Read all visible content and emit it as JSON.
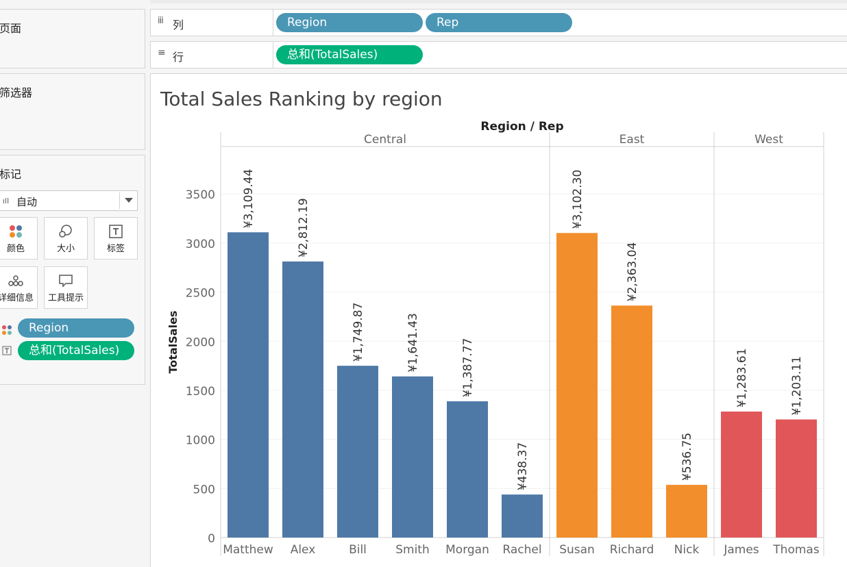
{
  "shelves": {
    "columns": {
      "label": "列",
      "pills": [
        "Region",
        "Rep"
      ]
    },
    "rows": {
      "label": "行",
      "pills": [
        "总和(TotalSales)"
      ]
    }
  },
  "panels": {
    "pages": {
      "title": "页面"
    },
    "filters": {
      "title": "筛选器"
    },
    "marks": {
      "title": "标记",
      "mark_type": "自动",
      "buttons": [
        {
          "label": "颜色",
          "icon": "color-dots-icon"
        },
        {
          "label": "大小",
          "icon": "size-circles-icon"
        },
        {
          "label": "标签",
          "icon": "label-t-icon"
        },
        {
          "label": "详细信息",
          "icon": "detail-dots-icon"
        },
        {
          "label": "工具提示",
          "icon": "tooltip-bubble-icon"
        }
      ],
      "fields": [
        {
          "label": "Region",
          "type": "color",
          "pill_color": "#4a96b5"
        },
        {
          "label": "总和(TotalSales)",
          "type": "label",
          "pill_color": "#00b17a"
        }
      ]
    }
  },
  "chart_data": {
    "type": "bar",
    "title": "Total Sales Ranking by region",
    "header_title": "Region / Rep",
    "ylabel": "TotalSales",
    "ylim": [
      0,
      4000
    ],
    "yticks": [
      0,
      500,
      1000,
      1500,
      2000,
      2500,
      3000,
      3500
    ],
    "groups": [
      {
        "name": "Central",
        "color": "#4e79a7",
        "reps": [
          "Matthew",
          "Alex",
          "Bill",
          "Smith",
          "Morgan",
          "Rachel"
        ],
        "values": [
          3109.44,
          2812.19,
          1749.87,
          1641.43,
          1387.77,
          438.37
        ],
        "labels": [
          "¥3,109.44",
          "¥2,812.19",
          "¥1,749.87",
          "¥1,641.43",
          "¥1,387.77",
          "¥438.37"
        ]
      },
      {
        "name": "East",
        "color": "#f28e2b",
        "reps": [
          "Susan",
          "Richard",
          "Nick"
        ],
        "values": [
          3102.3,
          2363.04,
          536.75
        ],
        "labels": [
          "¥3,102.30",
          "¥2,363.04",
          "¥536.75"
        ]
      },
      {
        "name": "West",
        "color": "#e15759",
        "reps": [
          "James",
          "Thomas"
        ],
        "values": [
          1283.61,
          1203.11
        ],
        "labels": [
          "¥1,283.61",
          "¥1,203.11"
        ]
      }
    ]
  }
}
